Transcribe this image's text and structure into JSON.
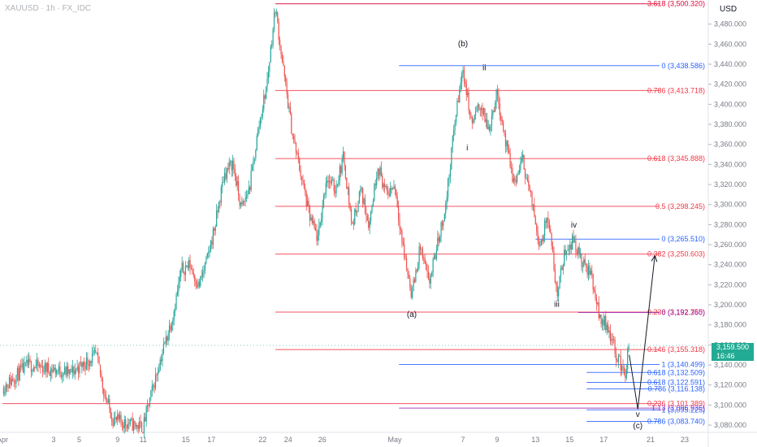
{
  "header": {
    "symbol": "XAUUSD · 1h · FX_IDC",
    "currency": "USD"
  },
  "last_price": {
    "value": "3,159.500",
    "countdown": "16:46"
  },
  "colors": {
    "up": "#26a69a",
    "down": "#ef5350",
    "fib_red": "#f23645",
    "fib_blue": "#2962ff",
    "fib_purple": "#9c27b0",
    "price_box": "#22ab94"
  },
  "chart_data": {
    "type": "candlestick",
    "title": "",
    "xlabel": "",
    "ylabel": "",
    "ylim": [
      3074,
      3510
    ],
    "y_ticks": [
      "3,480.000",
      "3,460.000",
      "3,440.000",
      "3,420.000",
      "3,400.000",
      "3,380.000",
      "3,360.000",
      "3,340.000",
      "3,320.000",
      "3,300.000",
      "3,280.000",
      "3,260.000",
      "3,240.000",
      "3,220.000",
      "3,200.000",
      "3,180.000",
      "3,160.000",
      "3,140.000",
      "3,120.000",
      "3,100.000",
      "3,080.000"
    ],
    "x_ticks": [
      "Apr",
      "3",
      "5",
      "9",
      "11",
      "15",
      "17",
      "22",
      "24",
      "26",
      "May",
      "7",
      "9",
      "13",
      "15",
      "17",
      "21",
      "23"
    ],
    "price_path": [
      {
        "t": 0,
        "p": 3117
      },
      {
        "t": 3,
        "p": 3140
      },
      {
        "t": 8,
        "p": 3132
      },
      {
        "t": 11,
        "p": 3150
      },
      {
        "t": 12,
        "p": 3110
      },
      {
        "t": 13,
        "p": 3085
      },
      {
        "t": 16.5,
        "p": 3078
      },
      {
        "t": 17,
        "p": 3096
      },
      {
        "t": 18.5,
        "p": 3145
      },
      {
        "t": 20,
        "p": 3190
      },
      {
        "t": 21,
        "p": 3235
      },
      {
        "t": 22,
        "p": 3240
      },
      {
        "t": 23,
        "p": 3218
      },
      {
        "t": 24,
        "p": 3245
      },
      {
        "t": 25,
        "p": 3282
      },
      {
        "t": 26,
        "p": 3330
      },
      {
        "t": 27,
        "p": 3342
      },
      {
        "t": 28,
        "p": 3295
      },
      {
        "t": 29,
        "p": 3318
      },
      {
        "t": 30,
        "p": 3375
      },
      {
        "t": 31,
        "p": 3420
      },
      {
        "t": 32,
        "p": 3497
      },
      {
        "t": 33,
        "p": 3430
      },
      {
        "t": 34,
        "p": 3370
      },
      {
        "t": 35,
        "p": 3330
      },
      {
        "t": 36,
        "p": 3288
      },
      {
        "t": 37,
        "p": 3265
      },
      {
        "t": 38,
        "p": 3328
      },
      {
        "t": 39,
        "p": 3315
      },
      {
        "t": 40,
        "p": 3348
      },
      {
        "t": 41,
        "p": 3278
      },
      {
        "t": 42,
        "p": 3315
      },
      {
        "t": 43,
        "p": 3280
      },
      {
        "t": 44,
        "p": 3340
      },
      {
        "t": 45,
        "p": 3310
      },
      {
        "t": 46,
        "p": 3320
      },
      {
        "t": 47,
        "p": 3255
      },
      {
        "t": 48,
        "p": 3210
      },
      {
        "t": 49,
        "p": 3258
      },
      {
        "t": 50,
        "p": 3220
      },
      {
        "t": 51,
        "p": 3260
      },
      {
        "t": 52,
        "p": 3300
      },
      {
        "t": 53,
        "p": 3380
      },
      {
        "t": 54,
        "p": 3436
      },
      {
        "t": 55,
        "p": 3380
      },
      {
        "t": 56,
        "p": 3400
      },
      {
        "t": 57,
        "p": 3375
      },
      {
        "t": 58,
        "p": 3412
      },
      {
        "t": 59,
        "p": 3362
      },
      {
        "t": 60,
        "p": 3320
      },
      {
        "t": 61,
        "p": 3345
      },
      {
        "t": 62,
        "p": 3305
      },
      {
        "t": 63,
        "p": 3260
      },
      {
        "t": 64,
        "p": 3290
      },
      {
        "t": 65,
        "p": 3210
      },
      {
        "t": 66,
        "p": 3255
      },
      {
        "t": 67,
        "p": 3265
      },
      {
        "t": 68,
        "p": 3240
      },
      {
        "t": 69,
        "p": 3232
      },
      {
        "t": 70,
        "p": 3188
      },
      {
        "t": 71,
        "p": 3178
      },
      {
        "t": 72,
        "p": 3150
      },
      {
        "t": 73,
        "p": 3130
      },
      {
        "t": 73.5,
        "p": 3159.5
      }
    ],
    "projection": [
      {
        "t": 73.5,
        "p": 3150
      },
      {
        "t": 74.5,
        "p": 3096
      },
      {
        "t": 76.5,
        "p": 3249
      }
    ],
    "fibonacci_levels": [
      {
        "label": "3.618 (3,500.320)",
        "price": 3500.32,
        "color": "#9c27b0"
      },
      {
        "label": "3.618 (3,500.320)",
        "price": 3500.32,
        "color": "#f23645"
      },
      {
        "label": "0 (3,438.586)",
        "price": 3438.586,
        "color": "#2962ff"
      },
      {
        "label": "0.786 (3,413.718)",
        "price": 3413.718,
        "color": "#f23645"
      },
      {
        "label": "0.618 (3,345.888)",
        "price": 3345.888,
        "color": "#f23645"
      },
      {
        "label": "0.5 (3,298.245)",
        "price": 3298.245,
        "color": "#f23645"
      },
      {
        "label": "0 (3,265.510)",
        "price": 3265.51,
        "color": "#2962ff"
      },
      {
        "label": "0.382 (3,250.603)",
        "price": 3250.603,
        "color": "#f23645"
      },
      {
        "label": "0.236 (3,192.755)",
        "price": 3192.755,
        "color": "#f23645"
      },
      {
        "label": "0 (3,192.360)",
        "price": 3192.36,
        "color": "#9c27b0"
      },
      {
        "label": "0.146 (3,155.318)",
        "price": 3155.318,
        "color": "#f23645"
      },
      {
        "label": "1 (3,140.499)",
        "price": 3140.499,
        "color": "#2962ff"
      },
      {
        "label": "0.618 (3,132.509)",
        "price": 3132.509,
        "color": "#2962ff"
      },
      {
        "label": "0.618 (3,122.591)",
        "price": 3122.591,
        "color": "#2962ff"
      },
      {
        "label": "0.786 (3,116.138)",
        "price": 3116.138,
        "color": "#2962ff"
      },
      {
        "label": "0.236 (3,101.389)",
        "price": 3101.389,
        "color": "#f23645"
      },
      {
        "label": "1.13 (3,096.936)",
        "price": 3096.936,
        "color": "#9c27b0"
      },
      {
        "label": "1 (3,095.225)",
        "price": 3095.225,
        "color": "#2962ff"
      },
      {
        "label": "0.786 (3,083.740)",
        "price": 3083.74,
        "color": "#2962ff"
      }
    ],
    "wave_labels": [
      {
        "text": "(b)",
        "t": 54,
        "p": 3458
      },
      {
        "text": "ii",
        "t": 56.5,
        "p": 3434
      },
      {
        "text": "i",
        "t": 54.5,
        "p": 3354
      },
      {
        "text": "iv",
        "t": 67,
        "p": 3277
      },
      {
        "text": "(a)",
        "t": 48,
        "p": 3188
      },
      {
        "text": "iii",
        "t": 65,
        "p": 3198
      },
      {
        "text": "v",
        "t": 74.5,
        "p": 3088
      },
      {
        "text": "(c)",
        "t": 74.5,
        "p": 3077
      }
    ]
  }
}
